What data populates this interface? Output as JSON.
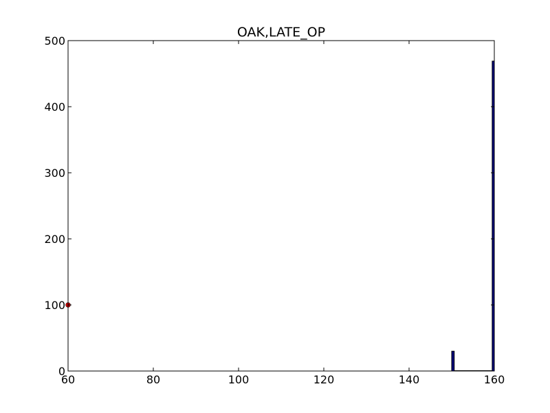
{
  "chart_data": {
    "type": "bar",
    "title": "OAK,LATE_OP",
    "xlabel": "",
    "ylabel": "",
    "xlim": [
      60,
      160
    ],
    "ylim": [
      0,
      500
    ],
    "xticks": [
      60,
      80,
      100,
      120,
      140,
      160
    ],
    "yticks": [
      0,
      100,
      200,
      300,
      400,
      500
    ],
    "grid": false,
    "legend": "none",
    "bars": [
      {
        "x": 150,
        "width": 0.6,
        "value": 30
      },
      {
        "x": 159.5,
        "width": 0.5,
        "value": 469
      }
    ],
    "bar_color": "#00007f",
    "baseline_segments": [
      {
        "x_start": 150,
        "x_end": 159.5
      }
    ],
    "markers": [
      {
        "x": 60,
        "y": 100,
        "color": "#cc0000"
      }
    ]
  }
}
